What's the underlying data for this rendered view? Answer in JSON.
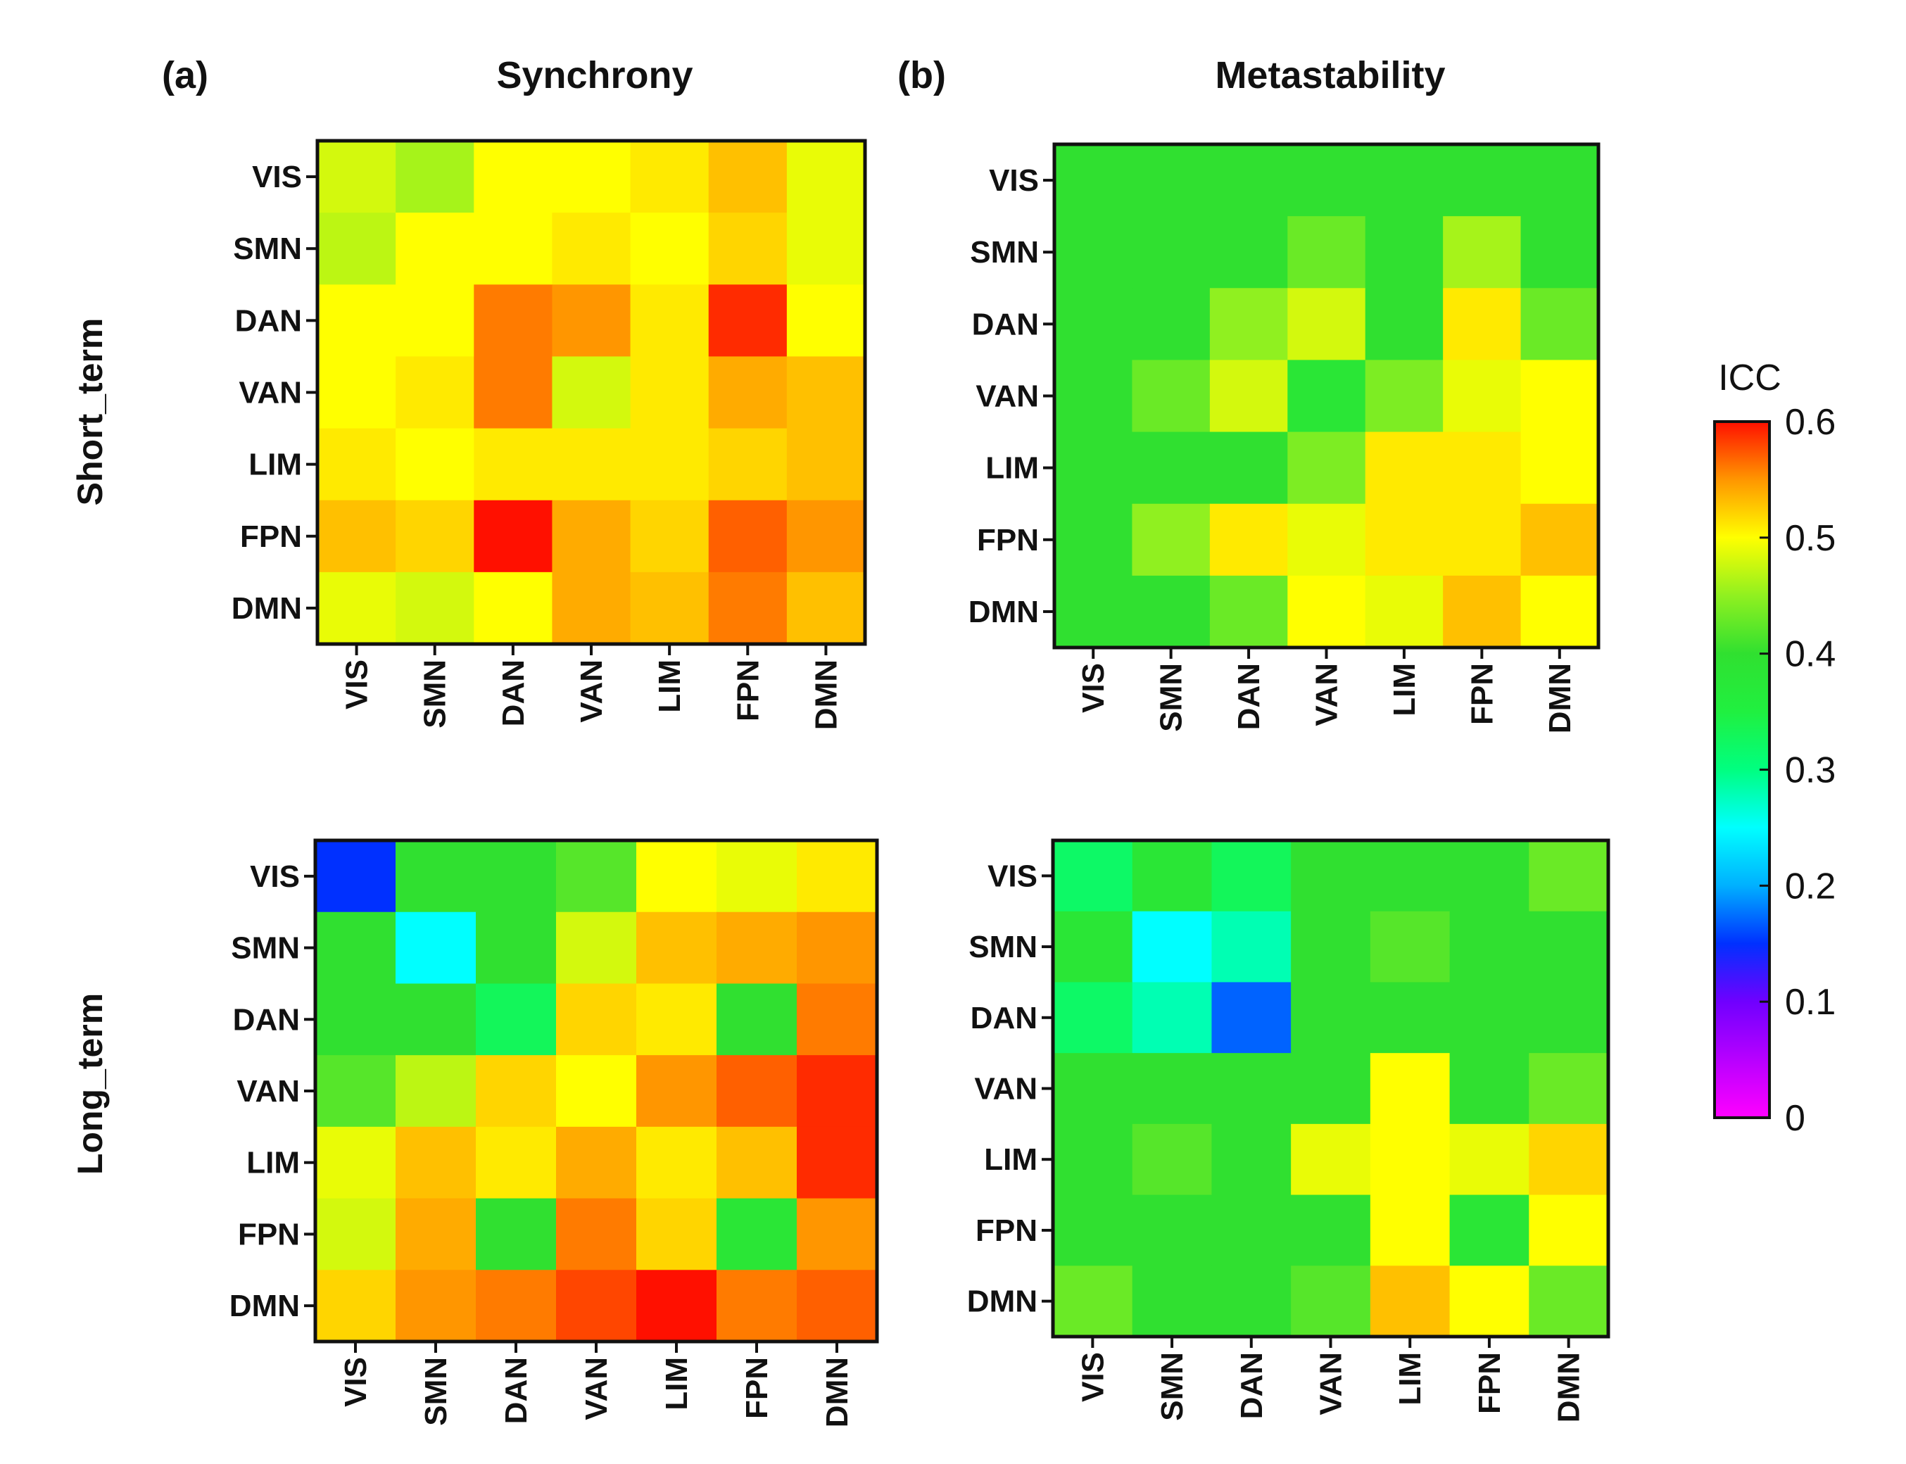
{
  "chart_data": [
    {
      "type": "heatmap",
      "panel": "(a)",
      "title": "Synchrony",
      "row_group": "Short_term",
      "rows": [
        "VIS",
        "SMN",
        "DAN",
        "VAN",
        "LIM",
        "FPN",
        "DMN"
      ],
      "cols": [
        "VIS",
        "SMN",
        "DAN",
        "VAN",
        "LIM",
        "FPN",
        "DMN"
      ],
      "values": [
        [
          0.48,
          0.46,
          0.5,
          0.5,
          0.51,
          0.53,
          0.49
        ],
        [
          0.47,
          0.5,
          0.5,
          0.51,
          0.5,
          0.52,
          0.49
        ],
        [
          0.5,
          0.5,
          0.56,
          0.55,
          0.51,
          0.59,
          0.5
        ],
        [
          0.5,
          0.51,
          0.56,
          0.48,
          0.51,
          0.54,
          0.53
        ],
        [
          0.51,
          0.5,
          0.51,
          0.51,
          0.51,
          0.52,
          0.53
        ],
        [
          0.53,
          0.52,
          0.6,
          0.54,
          0.52,
          0.57,
          0.55
        ],
        [
          0.49,
          0.48,
          0.5,
          0.54,
          0.53,
          0.56,
          0.53
        ]
      ]
    },
    {
      "type": "heatmap",
      "panel": "(b)",
      "title": "Metastability",
      "row_group": "Short_term",
      "rows": [
        "VIS",
        "SMN",
        "DAN",
        "VAN",
        "LIM",
        "FPN",
        "DMN"
      ],
      "cols": [
        "VIS",
        "SMN",
        "DAN",
        "VAN",
        "LIM",
        "FPN",
        "DMN"
      ],
      "values": [
        [
          0.4,
          0.4,
          0.4,
          0.4,
          0.4,
          0.4,
          0.4
        ],
        [
          0.4,
          0.4,
          0.4,
          0.43,
          0.4,
          0.46,
          0.4
        ],
        [
          0.4,
          0.4,
          0.45,
          0.48,
          0.4,
          0.51,
          0.43
        ],
        [
          0.4,
          0.43,
          0.48,
          0.38,
          0.44,
          0.49,
          0.5
        ],
        [
          0.4,
          0.4,
          0.4,
          0.44,
          0.51,
          0.51,
          0.5
        ],
        [
          0.4,
          0.45,
          0.51,
          0.49,
          0.51,
          0.51,
          0.53
        ],
        [
          0.4,
          0.4,
          0.43,
          0.5,
          0.49,
          0.53,
          0.5
        ]
      ]
    },
    {
      "type": "heatmap",
      "panel": "(a)",
      "title": "Synchrony",
      "row_group": "Long_term",
      "rows": [
        "VIS",
        "SMN",
        "DAN",
        "VAN",
        "LIM",
        "FPN",
        "DMN"
      ],
      "cols": [
        "VIS",
        "SMN",
        "DAN",
        "VAN",
        "LIM",
        "FPN",
        "DMN"
      ],
      "values": [
        [
          0.15,
          0.4,
          0.4,
          0.42,
          0.5,
          0.49,
          0.51
        ],
        [
          0.4,
          0.25,
          0.4,
          0.48,
          0.53,
          0.54,
          0.55
        ],
        [
          0.4,
          0.4,
          0.33,
          0.52,
          0.51,
          0.4,
          0.56
        ],
        [
          0.42,
          0.47,
          0.52,
          0.5,
          0.55,
          0.57,
          0.59
        ],
        [
          0.49,
          0.53,
          0.51,
          0.54,
          0.51,
          0.53,
          0.59
        ],
        [
          0.48,
          0.54,
          0.4,
          0.56,
          0.52,
          0.38,
          0.55
        ],
        [
          0.52,
          0.55,
          0.56,
          0.58,
          0.6,
          0.56,
          0.57
        ]
      ]
    },
    {
      "type": "heatmap",
      "panel": "(b)",
      "title": "Metastability",
      "row_group": "Long_term",
      "rows": [
        "VIS",
        "SMN",
        "DAN",
        "VAN",
        "LIM",
        "FPN",
        "DMN"
      ],
      "cols": [
        "VIS",
        "SMN",
        "DAN",
        "VAN",
        "LIM",
        "FPN",
        "DMN"
      ],
      "values": [
        [
          0.32,
          0.38,
          0.33,
          0.4,
          0.4,
          0.4,
          0.43
        ],
        [
          0.38,
          0.25,
          0.28,
          0.4,
          0.42,
          0.4,
          0.4
        ],
        [
          0.32,
          0.28,
          0.17,
          0.4,
          0.4,
          0.4,
          0.4
        ],
        [
          0.4,
          0.4,
          0.4,
          0.4,
          0.5,
          0.4,
          0.43
        ],
        [
          0.4,
          0.42,
          0.4,
          0.49,
          0.5,
          0.49,
          0.52
        ],
        [
          0.4,
          0.4,
          0.4,
          0.4,
          0.5,
          0.38,
          0.5
        ],
        [
          0.43,
          0.4,
          0.4,
          0.42,
          0.53,
          0.5,
          0.43
        ]
      ]
    }
  ],
  "labels": {
    "a": "(a)",
    "b": "(b)",
    "synchrony": "Synchrony",
    "metastability": "Metastability",
    "short": "Short_term",
    "long": "Long_term"
  },
  "colorbar": {
    "title": "ICC",
    "range": [
      0,
      0.6
    ],
    "ticks": [
      "0",
      "0.1",
      "0.2",
      "0.3",
      "0.4",
      "0.5",
      "0.6"
    ]
  }
}
